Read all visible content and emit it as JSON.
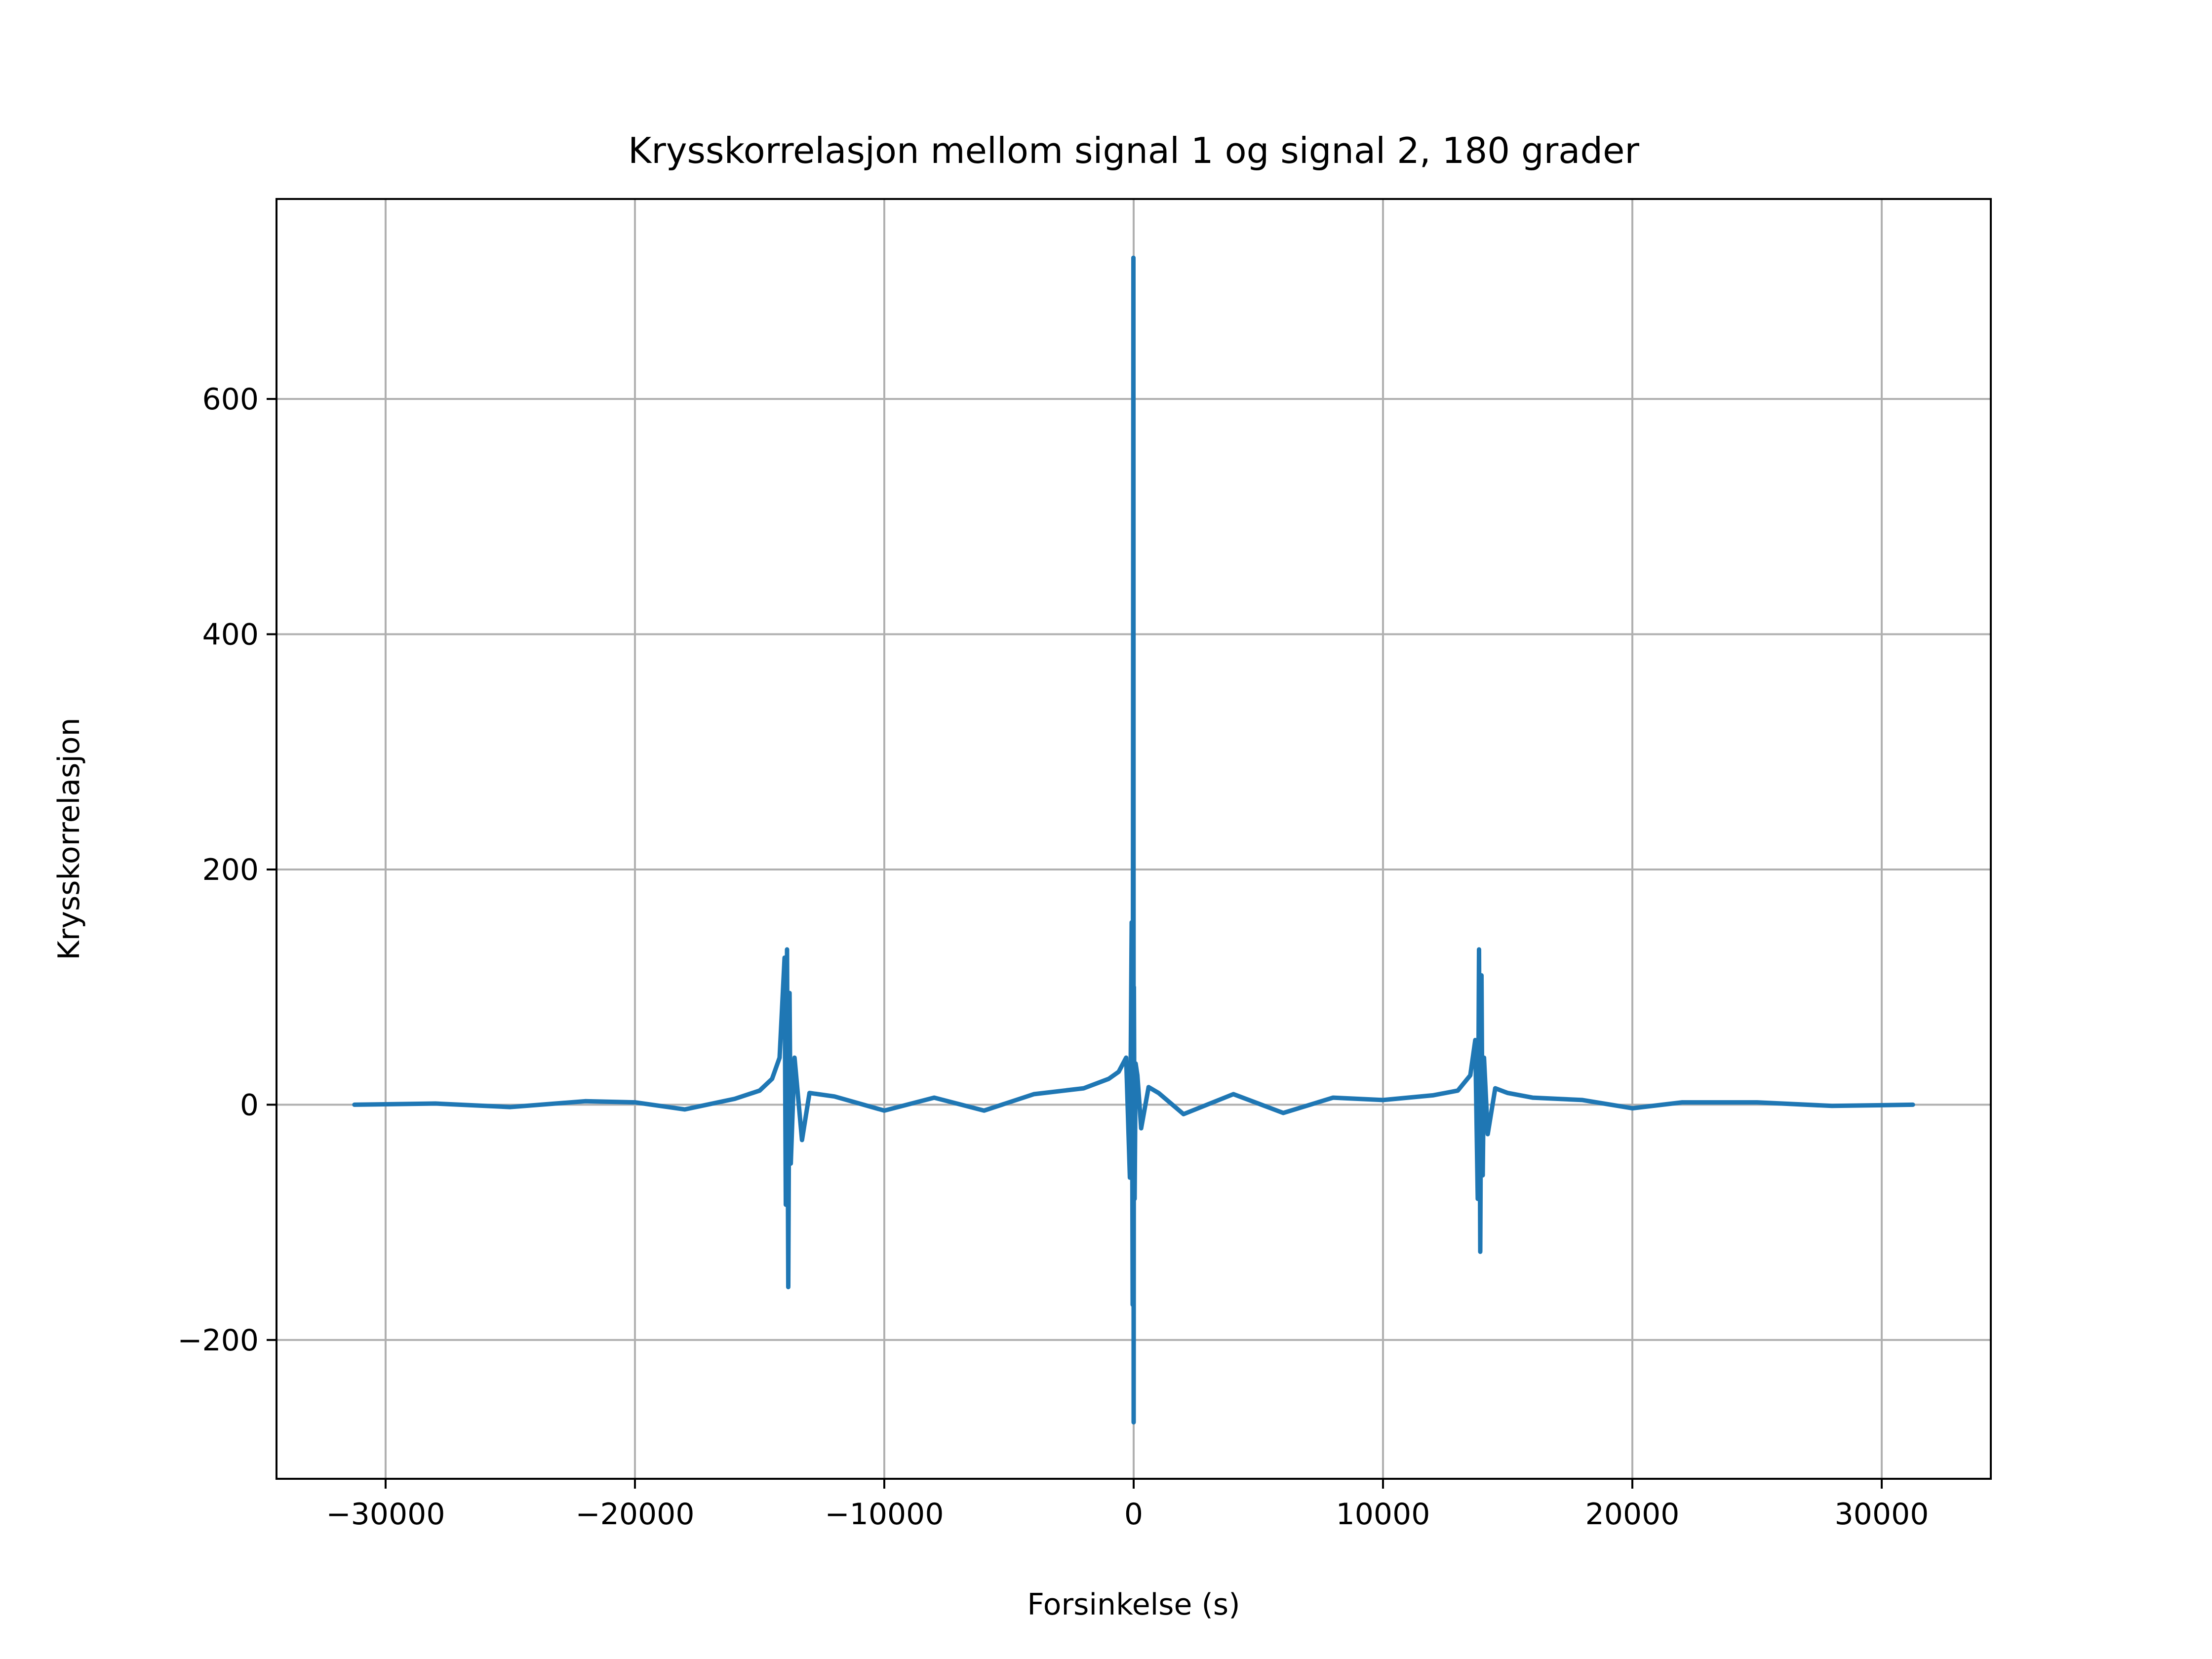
{
  "chart_data": {
    "type": "line",
    "title": "Krysskorrelasjon mellom signal 1 og signal 2, 180 grader",
    "xlabel": "Forsinkelse (s)",
    "ylabel": "Krysskorrelasjon",
    "xlim": [
      -34375,
      34375
    ],
    "ylim": [
      -318,
      770
    ],
    "xticks": [
      -30000,
      -20000,
      -10000,
      0,
      10000,
      20000,
      30000
    ],
    "xtick_labels": [
      "−30000",
      "−20000",
      "−10000",
      "0",
      "10000",
      "20000",
      "30000"
    ],
    "yticks": [
      -200,
      0,
      200,
      400,
      600
    ],
    "ytick_labels": [
      "−200",
      "0",
      "200",
      "400",
      "600"
    ],
    "grid": true,
    "series": [
      {
        "color": "#1f77b4",
        "x": [
          -31250,
          -28000,
          -25000,
          -22000,
          -20000,
          -18000,
          -16000,
          -15000,
          -14500,
          -14200,
          -14000,
          -13950,
          -13900,
          -13850,
          -13800,
          -13750,
          -13600,
          -13300,
          -13000,
          -12000,
          -10000,
          -8000,
          -6000,
          -4000,
          -2000,
          -1000,
          -600,
          -300,
          -150,
          -80,
          -40,
          -10,
          0,
          10,
          40,
          80,
          150,
          300,
          600,
          1000,
          2000,
          4000,
          6000,
          8000,
          10000,
          12000,
          13000,
          13500,
          13700,
          13800,
          13850,
          13900,
          13950,
          14000,
          14050,
          14200,
          14500,
          15000,
          16000,
          18000,
          20000,
          22000,
          25000,
          28000,
          31250
        ],
        "y": [
          0,
          1,
          -2,
          3,
          2,
          -4,
          5,
          12,
          22,
          40,
          125,
          -85,
          132,
          -155,
          95,
          -50,
          40,
          -30,
          10,
          7,
          -5,
          6,
          -5,
          9,
          14,
          22,
          28,
          40,
          -62,
          155,
          -170,
          720,
          -270,
          100,
          -80,
          35,
          25,
          -20,
          15,
          10,
          -8,
          9,
          -7,
          6,
          4,
          8,
          12,
          25,
          55,
          -80,
          132,
          -125,
          110,
          -60,
          40,
          -25,
          14,
          10,
          6,
          4,
          -3,
          2,
          2,
          -1,
          0
        ]
      }
    ]
  }
}
